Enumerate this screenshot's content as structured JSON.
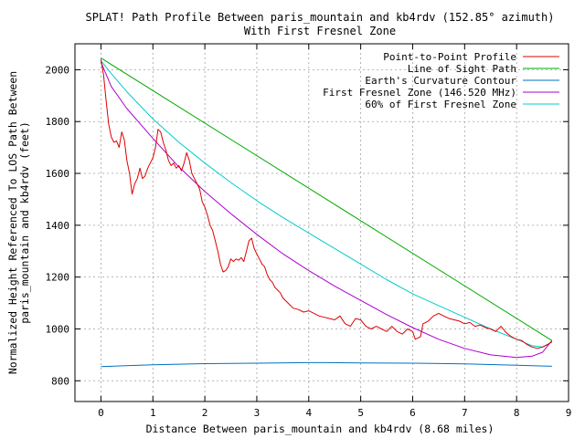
{
  "chart_data": {
    "type": "line",
    "title": "SPLAT! Path Profile Between paris_mountain and kb4rdv (152.85° azimuth)",
    "subtitle": "With First Fresnel Zone",
    "xlabel": "Distance Between paris_mountain and kb4rdv (8.68 miles)",
    "ylabel_line1": "Normalized Height Referenced To LOS Path Between",
    "ylabel_line2": "paris_mountain and kb4rdv (feet)",
    "xlim": [
      -0.5,
      9
    ],
    "ylim": [
      720,
      2100
    ],
    "xticks": [
      0,
      1,
      2,
      3,
      4,
      5,
      6,
      7,
      8,
      9
    ],
    "yticks": [
      800,
      1000,
      1200,
      1400,
      1600,
      1800,
      2000
    ],
    "grid": true,
    "legend_position": "top-right",
    "series": [
      {
        "name": "Point-to-Point Profile",
        "color": "#dd0000",
        "x": [
          0,
          0.05,
          0.1,
          0.15,
          0.2,
          0.25,
          0.3,
          0.35,
          0.4,
          0.45,
          0.5,
          0.55,
          0.6,
          0.65,
          0.7,
          0.75,
          0.8,
          0.85,
          0.9,
          0.95,
          1.0,
          1.05,
          1.1,
          1.15,
          1.2,
          1.25,
          1.3,
          1.35,
          1.4,
          1.45,
          1.5,
          1.55,
          1.6,
          1.65,
          1.7,
          1.75,
          1.8,
          1.85,
          1.9,
          1.95,
          2.0,
          2.05,
          2.1,
          2.15,
          2.2,
          2.25,
          2.3,
          2.35,
          2.4,
          2.45,
          2.5,
          2.55,
          2.6,
          2.65,
          2.7,
          2.75,
          2.8,
          2.85,
          2.9,
          2.95,
          3.0,
          3.05,
          3.1,
          3.15,
          3.2,
          3.25,
          3.3,
          3.35,
          3.4,
          3.45,
          3.5,
          3.6,
          3.7,
          3.8,
          3.9,
          4.0,
          4.1,
          4.2,
          4.3,
          4.4,
          4.5,
          4.6,
          4.7,
          4.8,
          4.9,
          5.0,
          5.1,
          5.2,
          5.3,
          5.4,
          5.5,
          5.6,
          5.7,
          5.8,
          5.9,
          6.0,
          6.05,
          6.1,
          6.15,
          6.2,
          6.3,
          6.4,
          6.5,
          6.6,
          6.7,
          6.8,
          6.9,
          7.0,
          7.1,
          7.2,
          7.3,
          7.4,
          7.5,
          7.6,
          7.7,
          7.8,
          7.9,
          8.0,
          8.1,
          8.2,
          8.3,
          8.4,
          8.5,
          8.6,
          8.68
        ],
        "y": [
          2040,
          1980,
          1880,
          1790,
          1740,
          1720,
          1725,
          1700,
          1760,
          1730,
          1650,
          1600,
          1520,
          1560,
          1580,
          1620,
          1580,
          1590,
          1620,
          1640,
          1660,
          1700,
          1770,
          1760,
          1720,
          1690,
          1650,
          1630,
          1640,
          1620,
          1630,
          1610,
          1640,
          1680,
          1650,
          1600,
          1580,
          1560,
          1540,
          1490,
          1470,
          1440,
          1400,
          1380,
          1340,
          1300,
          1250,
          1220,
          1225,
          1240,
          1270,
          1260,
          1270,
          1265,
          1275,
          1260,
          1300,
          1340,
          1350,
          1310,
          1290,
          1270,
          1250,
          1240,
          1210,
          1190,
          1180,
          1160,
          1150,
          1140,
          1120,
          1100,
          1080,
          1075,
          1065,
          1070,
          1060,
          1050,
          1045,
          1040,
          1035,
          1050,
          1020,
          1010,
          1040,
          1035,
          1010,
          1000,
          1010,
          1000,
          990,
          1010,
          990,
          980,
          1000,
          990,
          960,
          965,
          970,
          1020,
          1030,
          1050,
          1060,
          1050,
          1040,
          1035,
          1030,
          1020,
          1025,
          1010,
          1015,
          1005,
          1000,
          990,
          1010,
          985,
          970,
          960,
          955,
          940,
          930,
          925,
          930,
          940,
          950
        ]
      },
      {
        "name": "Line of Sight Path",
        "color": "#00aa00",
        "x": [
          0,
          8.68
        ],
        "y": [
          2045,
          955
        ]
      },
      {
        "name": "Earth's Curvature Contour",
        "color": "#0070c0",
        "x": [
          0,
          1,
          2,
          3,
          4,
          4.34,
          5,
          6,
          7,
          8,
          8.68
        ],
        "y": [
          855,
          862,
          866,
          868,
          870,
          870,
          869,
          868,
          865,
          860,
          856
        ]
      },
      {
        "name": "First Fresnel Zone (146.520 MHz)",
        "color": "#aa00cc",
        "x": [
          0,
          0.2,
          0.5,
          1,
          1.5,
          2,
          2.5,
          3,
          3.5,
          4,
          4.5,
          5,
          5.5,
          6,
          6.5,
          7,
          7.5,
          8,
          8.3,
          8.5,
          8.68
        ],
        "y": [
          2030,
          1935,
          1850,
          1735,
          1625,
          1530,
          1445,
          1365,
          1290,
          1225,
          1165,
          1110,
          1055,
          1005,
          960,
          925,
          900,
          890,
          895,
          910,
          955
        ]
      },
      {
        "name": "60% of First Fresnel Zone",
        "color": "#00cccc",
        "x": [
          0,
          0.2,
          0.5,
          1,
          1.5,
          2,
          2.5,
          3,
          3.5,
          4,
          4.5,
          5,
          5.5,
          6,
          6.5,
          7,
          7.5,
          8,
          8.3,
          8.5,
          8.68
        ],
        "y": [
          2035,
          1985,
          1915,
          1810,
          1720,
          1640,
          1565,
          1495,
          1430,
          1370,
          1310,
          1250,
          1190,
          1135,
          1090,
          1045,
          1000,
          960,
          935,
          930,
          950
        ]
      }
    ]
  }
}
